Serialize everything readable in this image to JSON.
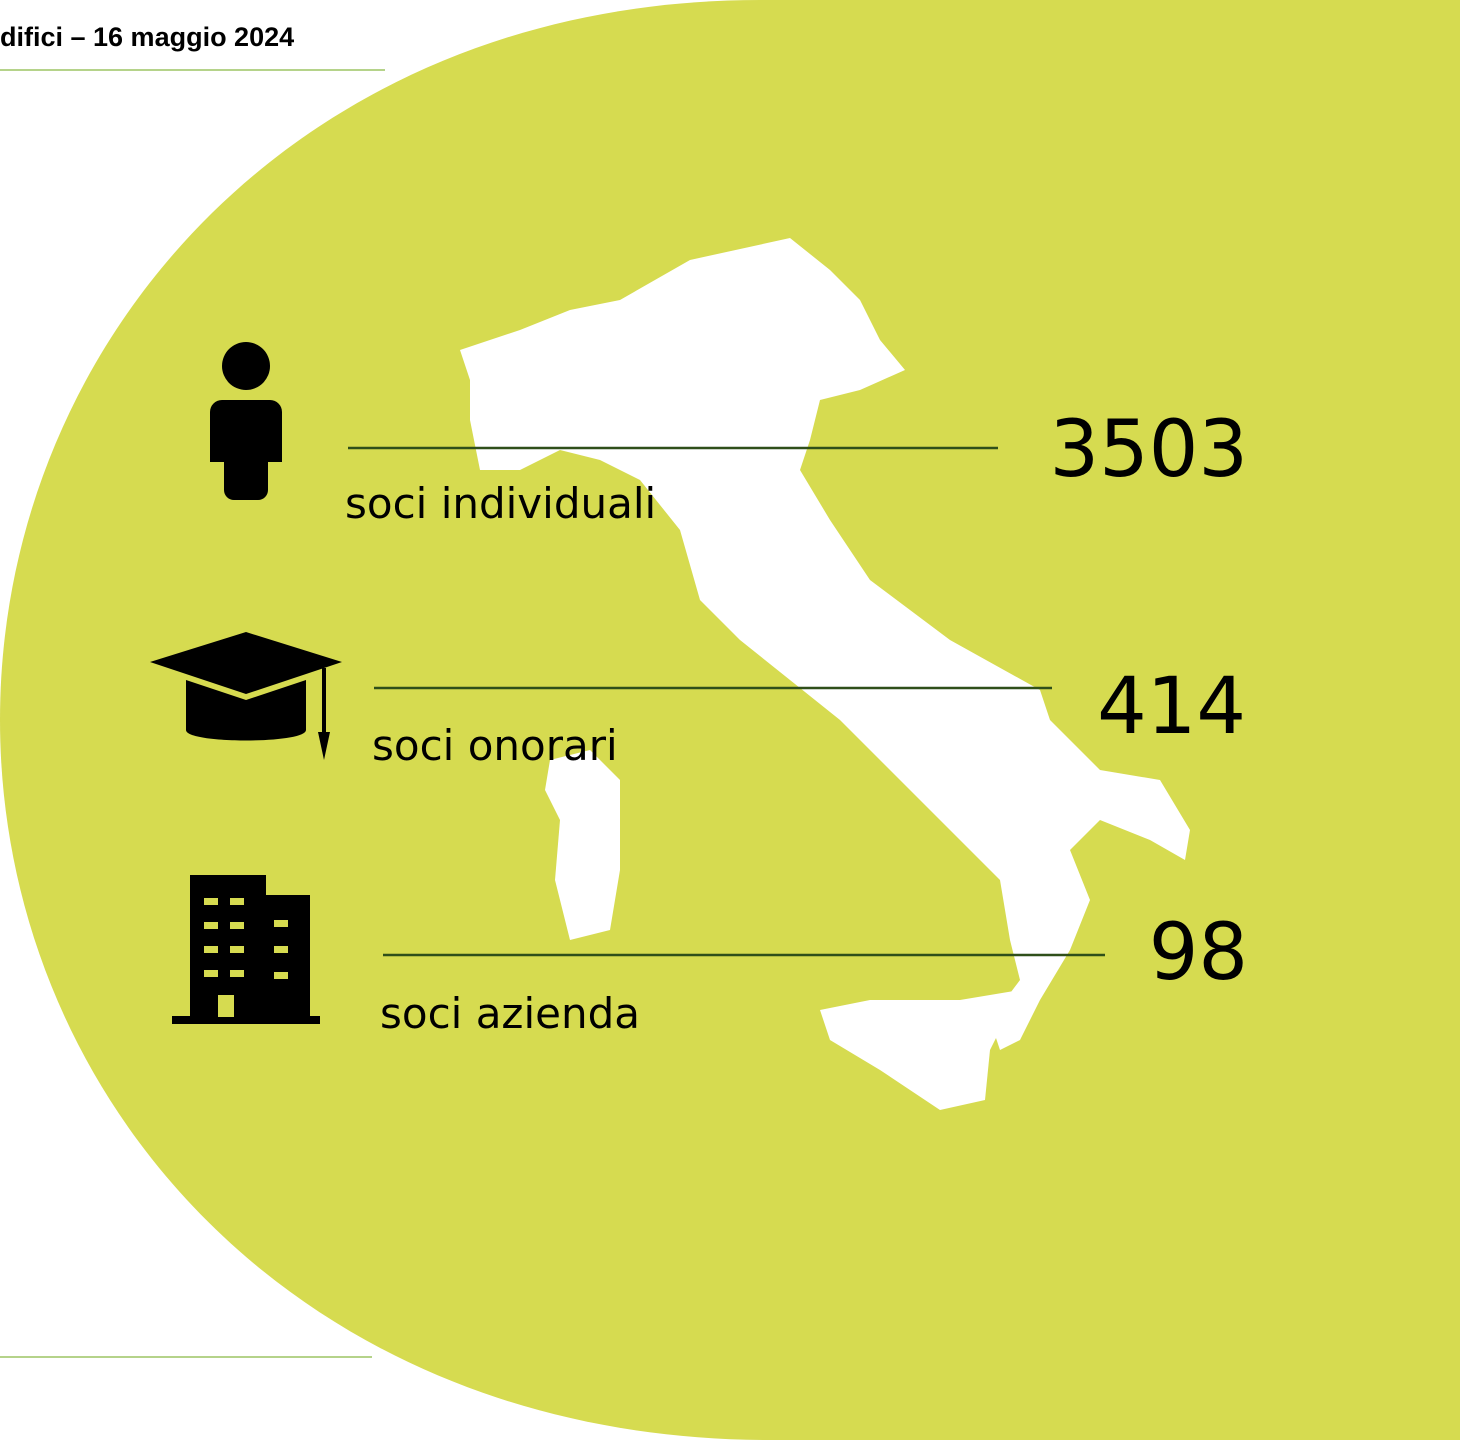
{
  "header": {
    "title": "difici – 16 maggio 2024"
  },
  "stats": [
    {
      "value": 3503,
      "label": "soci individuali"
    },
    {
      "value": 414,
      "label": "soci onorari"
    },
    {
      "value": 98,
      "label": "soci azienda"
    }
  ]
}
